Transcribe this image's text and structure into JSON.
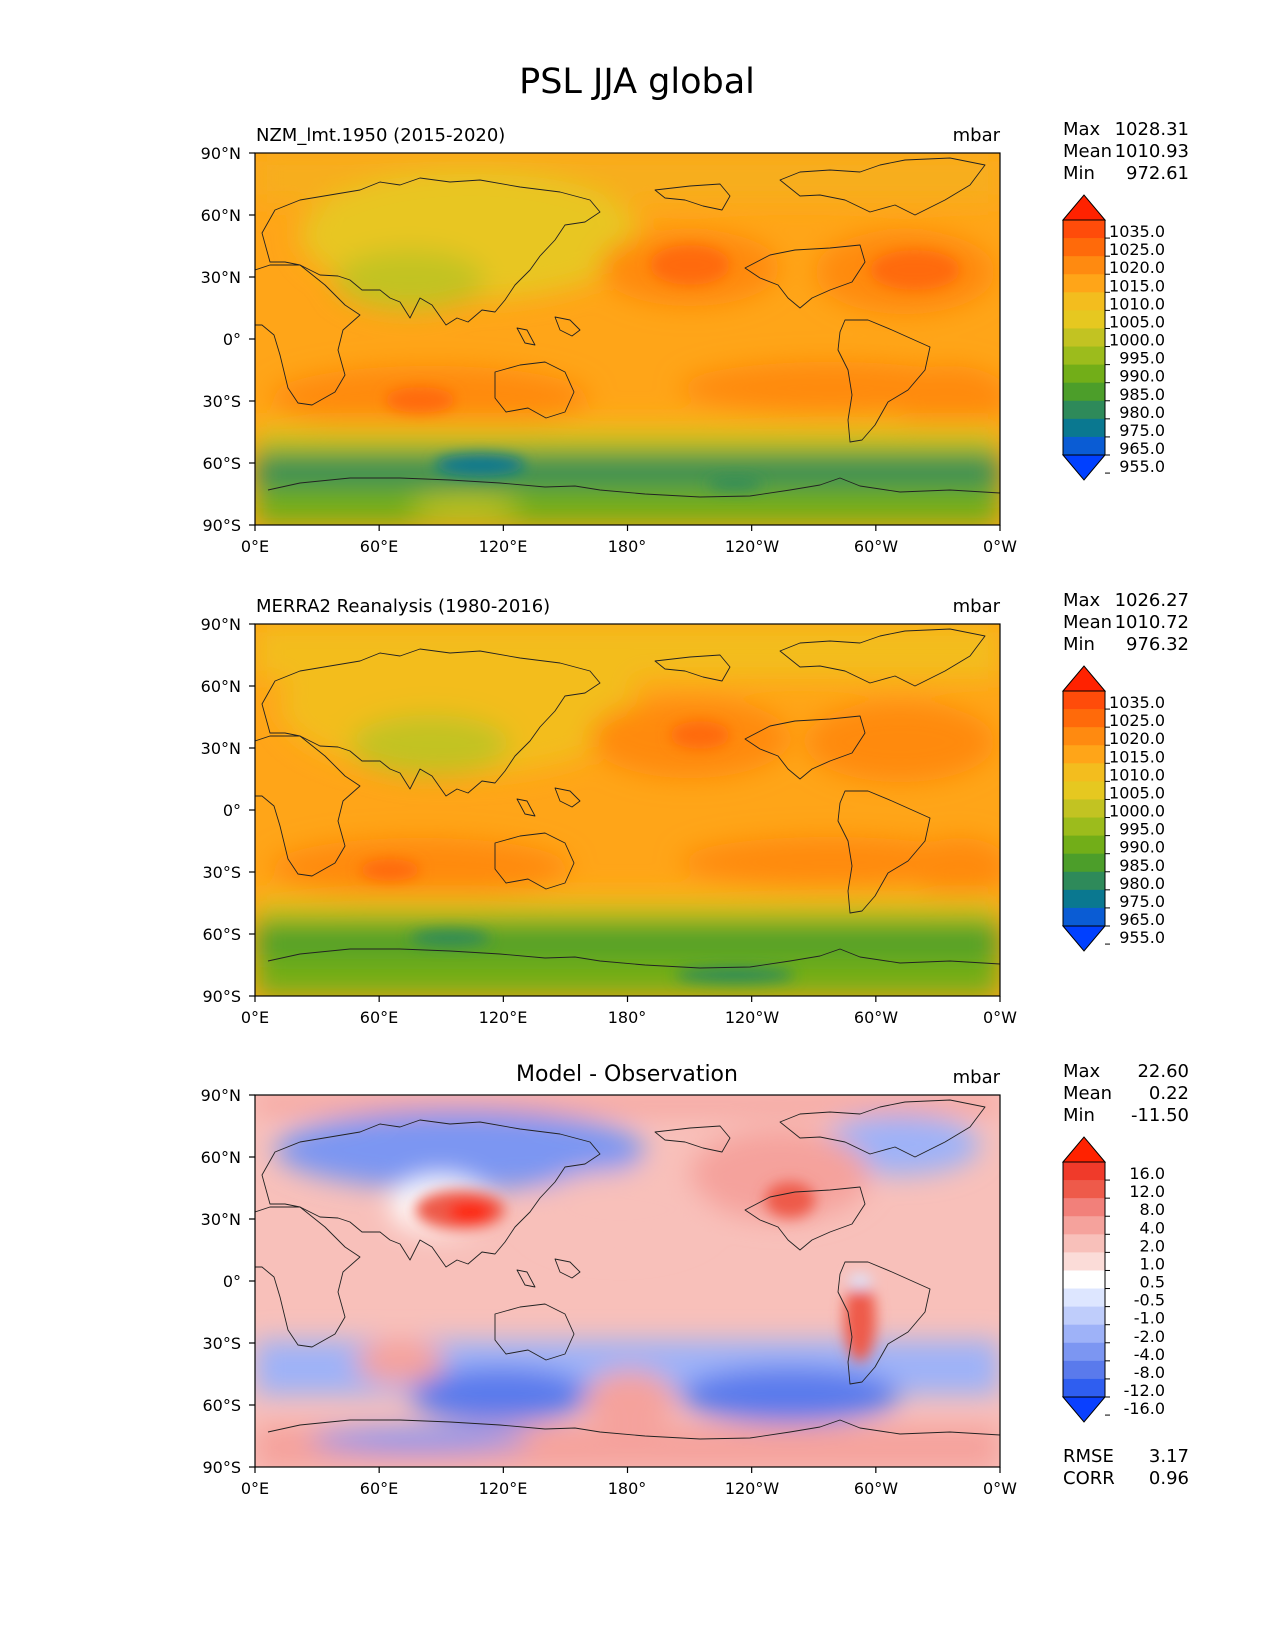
{
  "title": "PSL JJA global",
  "x_ticks": [
    "0°E",
    "60°E",
    "120°E",
    "180°",
    "120°W",
    "60°W",
    "0°W"
  ],
  "y_ticks": [
    "90°N",
    "60°N",
    "30°N",
    "0°",
    "30°S",
    "60°S",
    "90°S"
  ],
  "panels": [
    {
      "name": "model",
      "title_left": "NZM_lmt.1950 (2015-2020)",
      "title_center": "",
      "units": "mbar",
      "stats": [
        {
          "label": "Max",
          "value": "1028.31"
        },
        {
          "label": "Mean",
          "value": "1010.93"
        },
        {
          "label": "Min",
          "value": "972.61"
        }
      ],
      "colorbar": {
        "labels": [
          "1035.0",
          "1025.0",
          "1020.0",
          "1015.0",
          "1010.0",
          "1005.0",
          "1000.0",
          "995.0",
          "990.0",
          "985.0",
          "980.0",
          "975.0",
          "965.0",
          "955.0"
        ],
        "colors": [
          "#ff2200",
          "#ff4c0a",
          "#ff6a0a",
          "#ff8a10",
          "#ffa518",
          "#f3bd1e",
          "#e6c820",
          "#c2c322",
          "#9cbc1c",
          "#72ae18",
          "#4c9e2a",
          "#2e8a5a",
          "#0a7890",
          "#0a5cd4",
          "#0040ff"
        ]
      },
      "extras": []
    },
    {
      "name": "observation",
      "title_left": "MERRA2 Reanalysis (1980-2016)",
      "title_center": "",
      "units": "mbar",
      "stats": [
        {
          "label": "Max",
          "value": "1026.27"
        },
        {
          "label": "Mean",
          "value": "1010.72"
        },
        {
          "label": "Min",
          "value": "976.32"
        }
      ],
      "colorbar": {
        "labels": [
          "1035.0",
          "1025.0",
          "1020.0",
          "1015.0",
          "1010.0",
          "1005.0",
          "1000.0",
          "995.0",
          "990.0",
          "985.0",
          "980.0",
          "975.0",
          "965.0",
          "955.0"
        ],
        "colors": [
          "#ff2200",
          "#ff4c0a",
          "#ff6a0a",
          "#ff8a10",
          "#ffa518",
          "#f3bd1e",
          "#e6c820",
          "#c2c322",
          "#9cbc1c",
          "#72ae18",
          "#4c9e2a",
          "#2e8a5a",
          "#0a7890",
          "#0a5cd4",
          "#0040ff"
        ]
      },
      "extras": []
    },
    {
      "name": "difference",
      "title_left": "",
      "title_center": "Model - Observation",
      "units": "mbar",
      "stats": [
        {
          "label": "Max",
          "value": "22.60"
        },
        {
          "label": "Mean",
          "value": "0.22"
        },
        {
          "label": "Min",
          "value": "-11.50"
        }
      ],
      "colorbar": {
        "labels": [
          "16.0",
          "12.0",
          "8.0",
          "4.0",
          "2.0",
          "1.0",
          "0.5",
          "-0.5",
          "-1.0",
          "-2.0",
          "-4.0",
          "-8.0",
          "-12.0",
          "-16.0"
        ],
        "colors": [
          "#ff2200",
          "#f03a2a",
          "#ee5a4a",
          "#f2807a",
          "#f5a29c",
          "#f8c0ba",
          "#fbdcd8",
          "#ffffff",
          "#dde6ff",
          "#bfcdfb",
          "#9eb2f8",
          "#7c96f2",
          "#5a7aec",
          "#2f5ef0",
          "#0a40ff"
        ]
      },
      "extras": [
        {
          "label": "RMSE",
          "value": "3.17"
        },
        {
          "label": "CORR",
          "value": "0.96"
        }
      ]
    }
  ]
}
